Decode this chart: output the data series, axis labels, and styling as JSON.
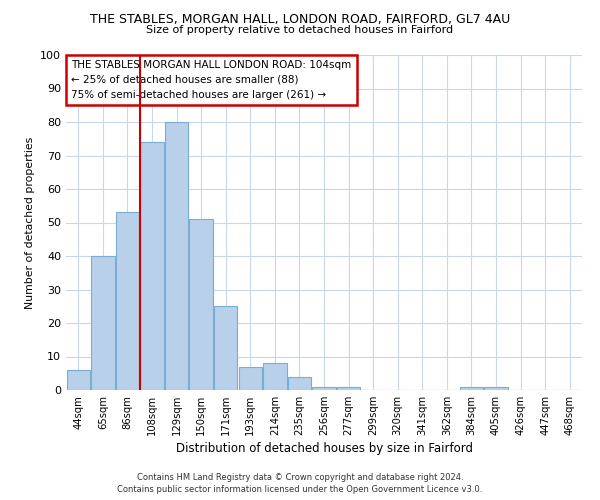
{
  "title": "THE STABLES, MORGAN HALL, LONDON ROAD, FAIRFORD, GL7 4AU",
  "subtitle": "Size of property relative to detached houses in Fairford",
  "xlabel": "Distribution of detached houses by size in Fairford",
  "ylabel": "Number of detached properties",
  "bar_labels": [
    "44sqm",
    "65sqm",
    "86sqm",
    "108sqm",
    "129sqm",
    "150sqm",
    "171sqm",
    "193sqm",
    "214sqm",
    "235sqm",
    "256sqm",
    "277sqm",
    "299sqm",
    "320sqm",
    "341sqm",
    "362sqm",
    "384sqm",
    "405sqm",
    "426sqm",
    "447sqm",
    "468sqm"
  ],
  "bar_heights": [
    6,
    40,
    53,
    74,
    80,
    51,
    25,
    7,
    8,
    4,
    1,
    1,
    0,
    0,
    0,
    0,
    1,
    1,
    0,
    0,
    0
  ],
  "bar_color": "#b8d0ea",
  "bar_edge_color": "#7aadd4",
  "vline_x_idx": 3,
  "vline_color": "#cc0000",
  "ylim": [
    0,
    100
  ],
  "annotation_line1": "THE STABLES MORGAN HALL LONDON ROAD: 104sqm",
  "annotation_line2": "← 25% of detached houses are smaller (88)",
  "annotation_line3": "75% of semi-detached houses are larger (261) →",
  "box_color": "#cc0000",
  "footnote1": "Contains HM Land Registry data © Crown copyright and database right 2024.",
  "footnote2": "Contains public sector information licensed under the Open Government Licence v3.0.",
  "background_color": "#ffffff",
  "grid_color": "#c8d8e8"
}
